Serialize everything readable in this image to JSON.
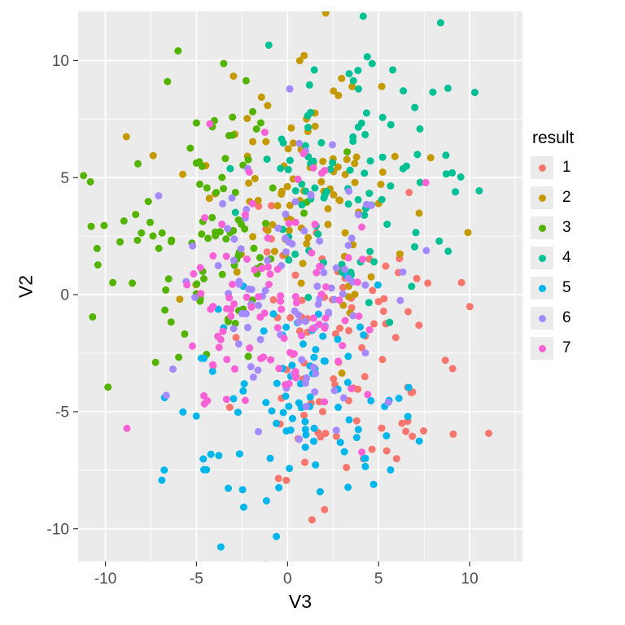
{
  "chart_data": {
    "type": "scatter",
    "title": "",
    "xlabel": "V3",
    "ylabel": "V2",
    "xlim": [
      -11.5,
      12.9
    ],
    "ylim": [
      -11.4,
      12.1
    ],
    "x_ticks": [
      -10,
      -5,
      0,
      5,
      10
    ],
    "y_ticks": [
      -10,
      -5,
      0,
      5,
      10
    ],
    "minor_step": 2.5,
    "grid": true,
    "panel_bg": "#EBEBEB",
    "grid_major_color": "#FFFFFF",
    "grid_minor_color": "#FFFFFF",
    "tick_label_color": "#4D4D4D",
    "tick_mark_color": "#333333",
    "point_radius": 4.5,
    "legend": {
      "title": "result",
      "position": "right",
      "key_bg": "#EBEBEB"
    },
    "sampling": "gaussian-cluster-approximation",
    "series": [
      {
        "name": "1",
        "color": "#F8766D",
        "n": 100,
        "mean": [
          3.0,
          -3.0
        ],
        "sd": [
          3.0,
          3.0
        ],
        "seed": 11
      },
      {
        "name": "2",
        "color": "#C49A00",
        "n": 100,
        "mean": [
          0.5,
          5.0
        ],
        "sd": [
          3.0,
          2.5
        ],
        "seed": 22
      },
      {
        "name": "3",
        "color": "#53B400",
        "n": 100,
        "mean": [
          -4.8,
          2.8
        ],
        "sd": [
          2.9,
          2.9
        ],
        "seed": 33
      },
      {
        "name": "4",
        "color": "#00C094",
        "n": 100,
        "mean": [
          3.2,
          4.8
        ],
        "sd": [
          3.3,
          2.9
        ],
        "seed": 44
      },
      {
        "name": "5",
        "color": "#00B6EB",
        "n": 100,
        "mean": [
          0.2,
          -4.8
        ],
        "sd": [
          2.9,
          2.5
        ],
        "seed": 55
      },
      {
        "name": "6",
        "color": "#A58AFF",
        "n": 100,
        "mean": [
          0.5,
          0.2
        ],
        "sd": [
          2.9,
          2.5
        ],
        "seed": 66
      },
      {
        "name": "7",
        "color": "#FB61D7",
        "n": 100,
        "mean": [
          -1.0,
          -0.3
        ],
        "sd": [
          3.0,
          3.0
        ],
        "seed": 77
      }
    ]
  }
}
